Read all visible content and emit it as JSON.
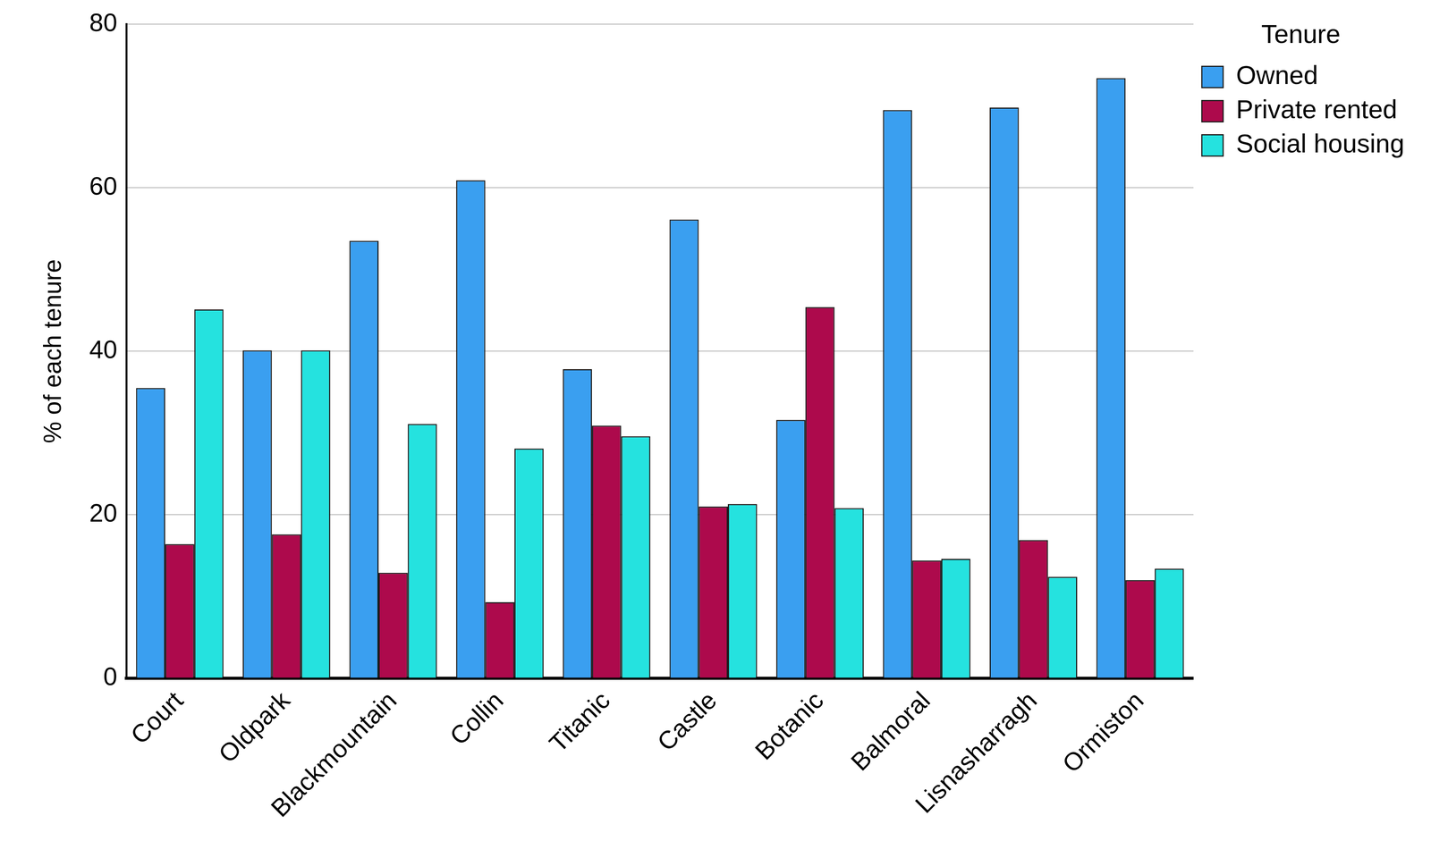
{
  "chart_data": {
    "type": "bar",
    "y_label": "% of each tenure",
    "legend_title": "Tenure",
    "categories": [
      "Court",
      "Oldpark",
      "Blackmountain",
      "Collin",
      "Titanic",
      "Castle",
      "Botanic",
      "Balmoral",
      "Lisnasharragh",
      "Ormiston"
    ],
    "series": [
      {
        "name": "Owned",
        "color": "#3a9ff0",
        "values": [
          35.5,
          40.1,
          53.5,
          60.9,
          37.8,
          56.1,
          31.6,
          69.5,
          69.8,
          73.4
        ]
      },
      {
        "name": "Private rented",
        "color": "#ad0a4c",
        "values": [
          16.4,
          17.6,
          12.9,
          9.3,
          30.9,
          21.0,
          45.4,
          14.4,
          16.9,
          12.0
        ]
      },
      {
        "name": "Social housing",
        "color": "#25e2df",
        "values": [
          45.1,
          40.1,
          31.1,
          28.1,
          29.6,
          21.3,
          20.8,
          14.6,
          12.4,
          13.4
        ]
      }
    ],
    "ylim": [
      0,
      80
    ],
    "yticks": [
      0,
      20,
      40,
      60,
      80
    ],
    "grid": true,
    "legend": "top-right"
  }
}
